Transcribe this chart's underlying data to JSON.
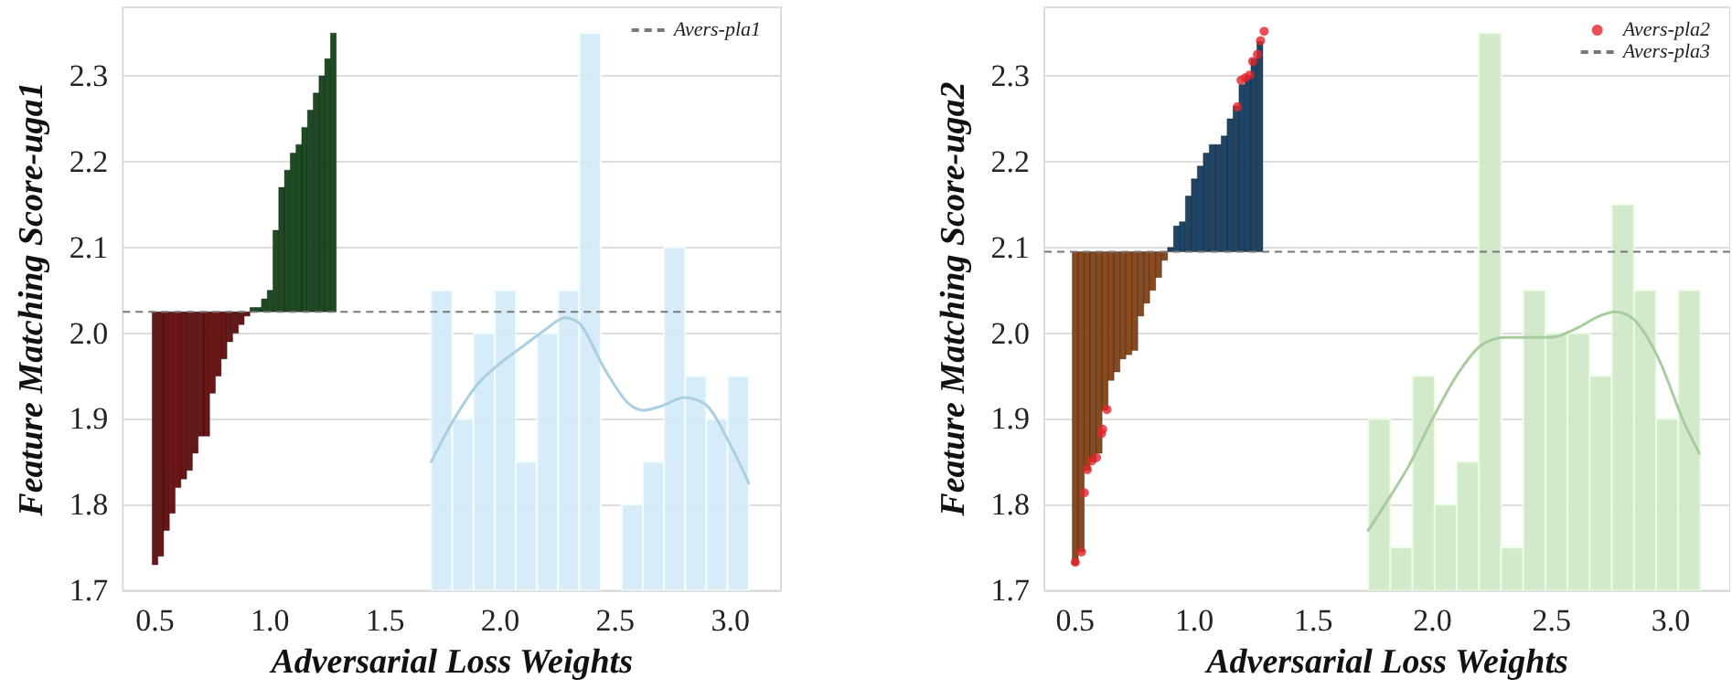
{
  "chart_data": [
    {
      "type": "bar",
      "xlabel": "Adversarial Loss Weights",
      "ylabel": "Feature Matching Score-uga1",
      "xlim": [
        0.36,
        3.22
      ],
      "ylim": [
        1.7,
        2.38
      ],
      "xticks": [
        0.5,
        {
          "value": 1,
          "label": "1.0"
        },
        1.5,
        {
          "value": 2,
          "label": "2.0"
        },
        2.5,
        {
          "value": 3,
          "label": "3.0"
        }
      ],
      "yticks": [
        1.7,
        1.8,
        1.9,
        {
          "value": 2,
          "label": "2.0"
        },
        2.1,
        2.2,
        2.3
      ],
      "grid": "y",
      "legend": "top right",
      "series": [
        {
          "color": "#6b1616",
          "x": [
            0.5,
            0.525,
            0.55,
            0.575,
            0.6,
            0.625,
            0.65,
            0.675,
            0.7,
            0.725,
            0.75,
            0.775,
            0.8,
            0.825,
            0.85,
            0.875,
            0.9
          ],
          "base": [
            2.025,
            2.025,
            2.025,
            2.025,
            2.025,
            2.025,
            2.025,
            2.025,
            2.025,
            2.025,
            2.025,
            2.025,
            2.025,
            2.025,
            2.025,
            2.025,
            2.025
          ],
          "values": [
            -0.295,
            -0.285,
            -0.255,
            -0.235,
            -0.205,
            -0.195,
            -0.185,
            -0.165,
            -0.145,
            -0.145,
            -0.095,
            -0.075,
            -0.055,
            -0.035,
            -0.025,
            -0.015,
            -0.005
          ]
        },
        {
          "color": "#1e4a24",
          "x": [
            0.925,
            0.95,
            0.975,
            1,
            1.025,
            1.05,
            1.075,
            1.1,
            1.125,
            1.15,
            1.175,
            1.2,
            1.225,
            1.25,
            1.275
          ],
          "base": [
            2.025,
            2.025,
            2.025,
            2.025,
            2.025,
            2.025,
            2.025,
            2.025,
            2.025,
            2.025,
            2.025,
            2.025,
            2.025,
            2.025,
            2.025
          ],
          "values": [
            0.005,
            0.005,
            0.015,
            0.025,
            0.095,
            0.145,
            0.165,
            0.185,
            0.195,
            0.215,
            0.235,
            0.255,
            0.275,
            0.295,
            0.325
          ]
        },
        {
          "type": "histogram",
          "color": "#d3eaf7",
          "bins": [
            1.7,
            1.792,
            1.884,
            1.976,
            2.068,
            2.16,
            2.252,
            2.344,
            2.436,
            2.528,
            2.62,
            2.712,
            2.804,
            2.896,
            2.988,
            3.08
          ],
          "values": [
            2.05,
            1.9,
            2.0,
            2.05,
            1.85,
            2.0,
            2.05,
            2.35,
            null,
            1.8,
            1.85,
            2.1,
            1.95,
            1.9,
            1.95
          ]
        },
        {
          "type": "line",
          "color": "#a9cfe0",
          "marker": "none",
          "x": [
            1.7,
            1.8,
            1.9,
            2.0,
            2.1,
            2.2,
            2.28,
            2.35,
            2.45,
            2.55,
            2.62,
            2.7,
            2.8,
            2.9,
            3.0,
            3.08
          ],
          "values": [
            1.85,
            1.9,
            1.94,
            1.965,
            1.985,
            2.005,
            2.018,
            2.01,
            1.96,
            1.92,
            1.91,
            1.915,
            1.925,
            1.915,
            1.87,
            1.825
          ]
        }
      ],
      "ref_lines": [
        {
          "axis": "y",
          "value": 2.025,
          "label": "Avers-pla1",
          "color": "#777777",
          "line_style": "dashed"
        }
      ]
    },
    {
      "type": "bar",
      "xlabel": "Adversarial Loss Weights",
      "ylabel": "Feature Matching Score-uga2",
      "xlim": [
        0.37,
        3.25
      ],
      "ylim": [
        1.7,
        2.38
      ],
      "xticks": [
        0.5,
        {
          "value": 1,
          "label": "1.0"
        },
        1.5,
        {
          "value": 2,
          "label": "2.0"
        },
        2.5,
        {
          "value": 3,
          "label": "3.0"
        }
      ],
      "yticks": [
        1.7,
        1.8,
        1.9,
        {
          "value": 2,
          "label": "2.0"
        },
        2.1,
        2.2,
        2.3
      ],
      "grid": "y",
      "legend": "top right",
      "series": [
        {
          "color": "#8a4a20",
          "x": [
            0.5,
            0.525,
            0.55,
            0.575,
            0.6,
            0.625,
            0.65,
            0.675,
            0.7,
            0.725,
            0.75,
            0.775,
            0.8,
            0.825,
            0.85,
            0.875
          ],
          "base": [
            2.095,
            2.095,
            2.095,
            2.095,
            2.095,
            2.095,
            2.095,
            2.095,
            2.095,
            2.095,
            2.095,
            2.095,
            2.095,
            2.095,
            2.095,
            2.095
          ],
          "values": [
            -0.365,
            -0.35,
            -0.255,
            -0.245,
            -0.235,
            -0.185,
            -0.15,
            -0.14,
            -0.125,
            -0.12,
            -0.115,
            -0.075,
            -0.06,
            -0.045,
            -0.03,
            -0.01
          ]
        },
        {
          "color": "#1f4566",
          "x": [
            0.9,
            0.925,
            0.95,
            0.975,
            1,
            1.025,
            1.05,
            1.075,
            1.1,
            1.125,
            1.15,
            1.175,
            1.2,
            1.225,
            1.25,
            1.275
          ],
          "base": [
            2.095,
            2.095,
            2.095,
            2.095,
            2.095,
            2.095,
            2.095,
            2.095,
            2.095,
            2.095,
            2.095,
            2.095,
            2.095,
            2.095,
            2.095,
            2.095
          ],
          "values": [
            0.005,
            0.03,
            0.035,
            0.065,
            0.085,
            0.1,
            0.115,
            0.125,
            0.125,
            0.135,
            0.155,
            0.17,
            0.195,
            0.205,
            0.225,
            0.245
          ]
        },
        {
          "type": "histogram",
          "color": "#cde7c6",
          "bins": [
            1.73,
            1.823,
            1.916,
            2.009,
            2.102,
            2.195,
            2.288,
            2.381,
            2.474,
            2.567,
            2.66,
            2.753,
            2.846,
            2.939,
            3.032,
            3.125
          ],
          "values": [
            1.9,
            1.75,
            1.95,
            1.8,
            1.85,
            2.35,
            1.75,
            2.05,
            2.0,
            2.0,
            1.95,
            2.15,
            2.05,
            1.9,
            2.05
          ]
        },
        {
          "type": "line",
          "color": "#a8cc9f",
          "marker": "none",
          "x": [
            1.73,
            1.8,
            1.9,
            2.0,
            2.1,
            2.2,
            2.3,
            2.4,
            2.5,
            2.6,
            2.7,
            2.77,
            2.85,
            2.95,
            3.05,
            3.12
          ],
          "values": [
            1.77,
            1.8,
            1.845,
            1.9,
            1.95,
            1.985,
            1.995,
            1.995,
            1.995,
            2.005,
            2.02,
            2.025,
            2.015,
            1.97,
            1.9,
            1.86
          ]
        },
        {
          "type": "scatter",
          "name": "Avers-pla2",
          "color": "#e3242b",
          "marker": "circle",
          "x": [
            0.5,
            0.526,
            0.538,
            0.551,
            0.569,
            0.589,
            0.61,
            0.615,
            0.633,
            1.181,
            1.196,
            1.214,
            1.232,
            1.245,
            1.265,
            1.278,
            1.293
          ],
          "values": [
            1.733,
            1.745,
            1.814,
            1.841,
            1.851,
            1.855,
            1.883,
            1.888,
            1.911,
            2.264,
            2.295,
            2.298,
            2.301,
            2.317,
            2.325,
            2.341,
            2.352
          ]
        }
      ],
      "ref_lines": [
        {
          "axis": "y",
          "value": 2.095,
          "label": "Avers-pla3",
          "color": "#777777",
          "line_style": "dashed"
        }
      ]
    }
  ]
}
